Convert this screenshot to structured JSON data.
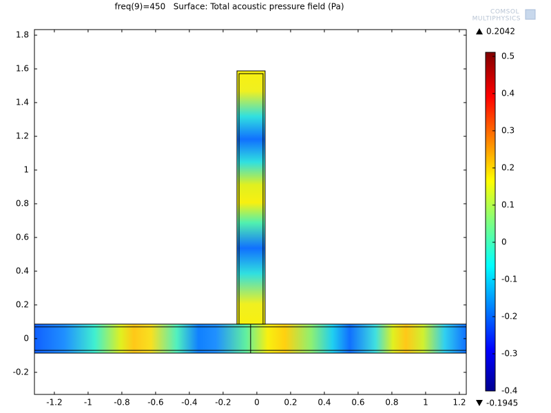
{
  "chart_data": {
    "type": "surface",
    "title": "freq(9)=450   Surface: Total acoustic pressure field (Pa)",
    "logo": [
      "COMSOL",
      "MULTIPHYSICS"
    ],
    "xlim": [
      -1.318,
      1.241
    ],
    "ylim": [
      -0.331,
      1.833
    ],
    "xticks": [
      -1.2,
      -1,
      -0.8,
      -0.6,
      -0.4,
      -0.2,
      0,
      0.2,
      0.4,
      0.6,
      0.8,
      1,
      1.2
    ],
    "yticks": [
      -0.2,
      0,
      0.2,
      0.4,
      0.6,
      0.8,
      1,
      1.2,
      1.4,
      1.6,
      1.8
    ],
    "domains": [
      {
        "name": "duct",
        "x": [
          -1.318,
          1.241
        ],
        "y": [
          -0.086,
          0.086
        ]
      },
      {
        "name": "branch",
        "x": [
          -0.118,
          0.049
        ],
        "y": [
          0.086,
          1.588
        ]
      }
    ],
    "interface_x": -0.037,
    "clim": [
      -0.4,
      0.511
    ],
    "cticks": [
      -0.4,
      -0.3,
      -0.2,
      -0.1,
      0,
      0.1,
      0.2,
      0.3,
      0.4,
      0.5
    ],
    "max": 0.2042,
    "min": -0.1945
  }
}
